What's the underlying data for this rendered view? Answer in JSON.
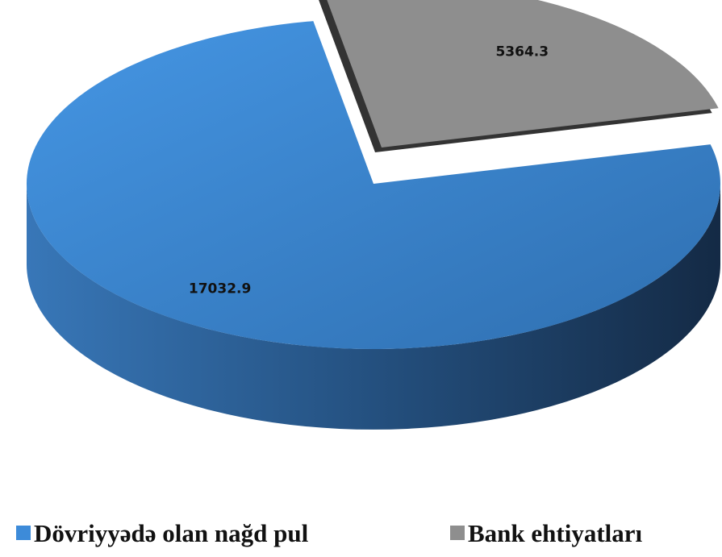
{
  "chart_data": {
    "type": "pie",
    "categories": [
      "Dövriyyədə olan nağd pul",
      "Bank ehtiyatları"
    ],
    "values": [
      17032.9,
      5364.3
    ],
    "colors": [
      "#3d8bd9",
      "#8e8e8e"
    ],
    "legend": "bottom"
  }
}
